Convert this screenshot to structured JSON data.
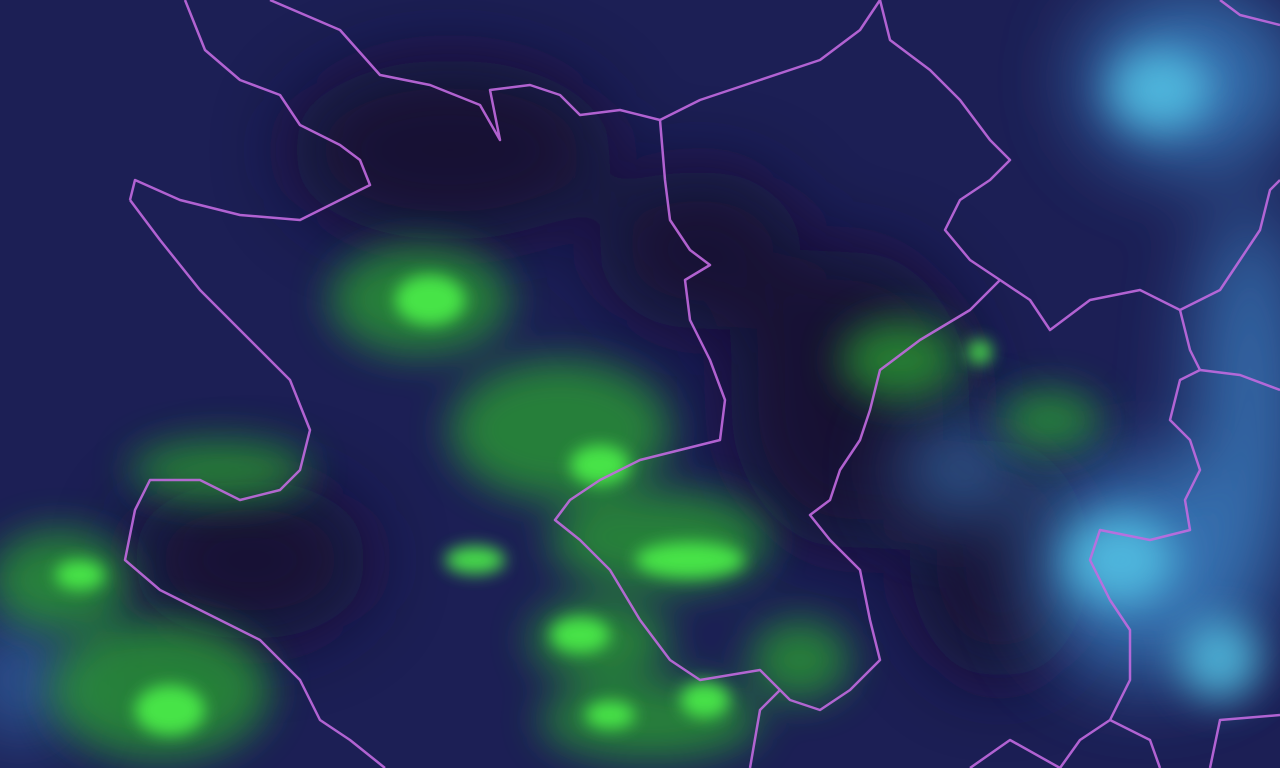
{
  "map": {
    "colors": {
      "background": "#1c1f55",
      "vegetation": "#3ddc3a",
      "cloud": "#4fb8d8",
      "border": "#c060e0"
    }
  }
}
